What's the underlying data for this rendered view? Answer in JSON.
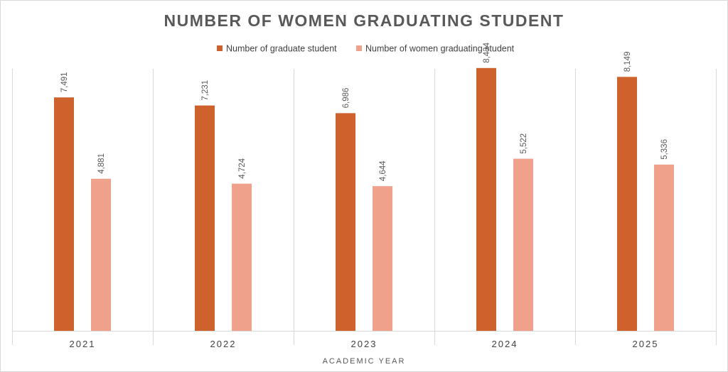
{
  "chart_data": {
    "type": "bar",
    "title": "NUMBER OF WOMEN GRADUATING STUDENT",
    "xlabel": "ACADEMIC YEAR",
    "ylabel": "",
    "categories": [
      "2021",
      "2022",
      "2023",
      "2024",
      "2025"
    ],
    "series": [
      {
        "name": "Number of graduate student",
        "values": [
          7491,
          7231,
          6986,
          8434,
          8149
        ],
        "labels": [
          "7,491",
          "7,231",
          "6,986",
          "8,434",
          "8,149"
        ],
        "color": "#CD622C"
      },
      {
        "name": "Number of women graduating student",
        "values": [
          4881,
          4724,
          4644,
          5522,
          5336
        ],
        "labels": [
          "4,881",
          "4,724",
          "4,644",
          "5,522",
          "5,336"
        ],
        "color": "#EFA18C"
      }
    ],
    "ylim": [
      0,
      9000
    ],
    "grid": "vertical category separators",
    "legend": "top-center",
    "data_labels": "rotated"
  }
}
